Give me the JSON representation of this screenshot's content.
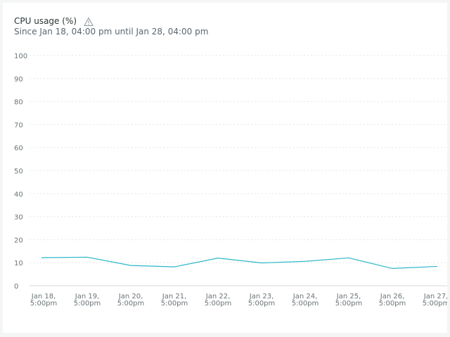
{
  "header": {
    "title": "CPU usage (%)",
    "subtitle": "Since Jan 18, 04:00 pm until Jan 28, 04:00 pm",
    "warning_icon": "warning-triangle-icon"
  },
  "colors": {
    "series": "#2cb7c9",
    "grid": "#e3e6e8",
    "text": "#6b7478"
  },
  "chart_data": {
    "type": "line",
    "ylim": [
      0,
      100
    ],
    "yticks": [
      0,
      10,
      20,
      30,
      40,
      50,
      60,
      70,
      80,
      90,
      100
    ],
    "ytick_labels": [
      "0",
      "10",
      "20",
      "30",
      "40",
      "50",
      "60",
      "70",
      "80",
      "90",
      "100"
    ],
    "x_tick_labels": [
      [
        "Jan 18,",
        "5:00pm"
      ],
      [
        "Jan 19,",
        "5:00pm"
      ],
      [
        "Jan 20,",
        "5:00pm"
      ],
      [
        "Jan 21,",
        "5:00pm"
      ],
      [
        "Jan 22,",
        "5:00pm"
      ],
      [
        "Jan 23,",
        "5:00pm"
      ],
      [
        "Jan 24,",
        "5:00pm"
      ],
      [
        "Jan 25,",
        "5:00pm"
      ],
      [
        "Jan 26,",
        "5:00pm"
      ],
      [
        "Jan 27,",
        "5:00pm"
      ]
    ],
    "x": [
      "Jan 18, 5:00pm",
      "Jan 19, 5:00pm",
      "Jan 20, 5:00pm",
      "Jan 21, 5:00pm",
      "Jan 22, 5:00pm",
      "Jan 23, 5:00pm",
      "Jan 24, 5:00pm",
      "Jan 25, 5:00pm",
      "Jan 26, 5:00pm",
      "Jan 27, 5:00pm"
    ],
    "values": [
      12.2,
      12.4,
      8.8,
      8.2,
      12.0,
      9.9,
      10.6,
      12.1,
      7.5,
      8.4
    ],
    "grid": true
  }
}
